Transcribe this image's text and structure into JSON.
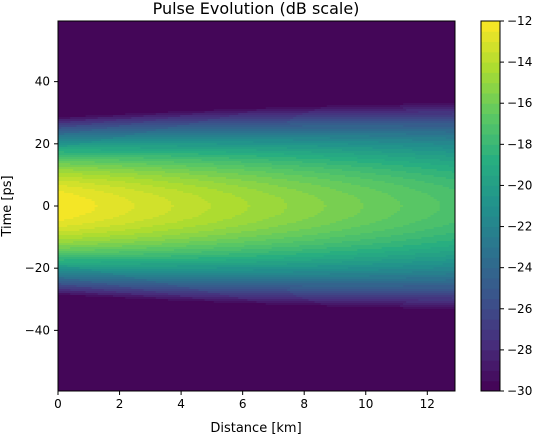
{
  "chart_data": {
    "type": "heatmap",
    "title": "Pulse Evolution (dB scale)",
    "xlabel": "Distance [km]",
    "ylabel": "Time [ps]",
    "xlim": [
      0,
      12.9
    ],
    "ylim": [
      -59.5,
      59.5
    ],
    "x_ticks": [
      0,
      2,
      4,
      6,
      8,
      10,
      12
    ],
    "y_ticks": [
      -40,
      -20,
      0,
      20,
      40
    ],
    "colorbar": {
      "range": [
        -30,
        -12
      ],
      "ticks": [
        -30,
        -28,
        -26,
        -24,
        -22,
        -20,
        -18,
        -16,
        -14,
        -12
      ],
      "colormap": "viridis",
      "levels": 36
    },
    "model": {
      "peak_db_at_start": -12.0,
      "peak_db_at_end": -17.2,
      "pulse_width_ps_at_start": 14.2,
      "pulse_width_ps_at_end": 19.7,
      "floor_db": -30
    },
    "grid": false
  }
}
